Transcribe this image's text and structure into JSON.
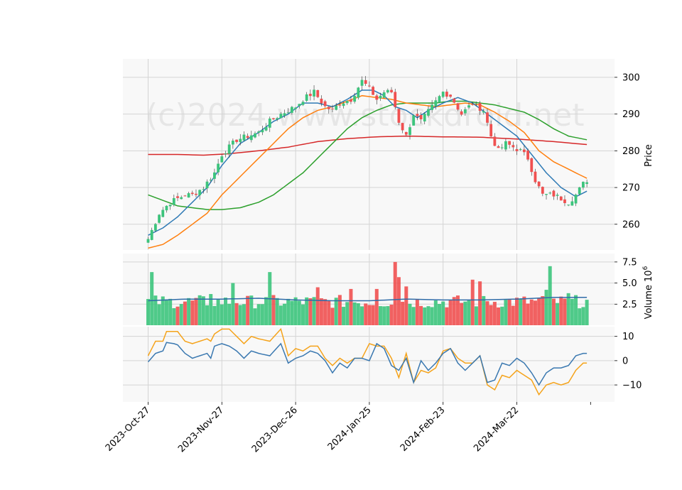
{
  "watermark": "(c)2024 www.stockdroid.net",
  "colors": {
    "panel_bg": "#f8f8f8",
    "grid": "#d4d4d4",
    "up": "#3cc47c",
    "down": "#f05050",
    "ma_short": "#2f7ab5",
    "ma_mid": "#ff7f0e",
    "ma_long": "#2ca02c",
    "ma_200": "#d62728",
    "vol_ma": "#2f6ca8",
    "osc_fast": "#3a78b0",
    "osc_slow": "#f5a31a"
  },
  "chart_data": [
    {
      "type": "candlestick",
      "panel": "price",
      "ylabel": "Price",
      "ylim": [
        253,
        305
      ],
      "yticks": [
        260,
        270,
        280,
        290,
        300
      ],
      "x_tick_labels": [
        "2023-Oct-27",
        "2023-Nov-27",
        "2023-Dec-26",
        "2024-Jan-25",
        "2024-Feb-23",
        "2024-Mar-22"
      ],
      "x_tick_index": [
        0,
        20,
        40,
        60,
        80,
        100
      ],
      "n_bars": 120,
      "close_anchors": [
        [
          0,
          256
        ],
        [
          3,
          263
        ],
        [
          6,
          266
        ],
        [
          10,
          268
        ],
        [
          12,
          268
        ],
        [
          15,
          270
        ],
        [
          18,
          274
        ],
        [
          20,
          279
        ],
        [
          24,
          283
        ],
        [
          27,
          284
        ],
        [
          30,
          285
        ],
        [
          33,
          288
        ],
        [
          36,
          290
        ],
        [
          38,
          291
        ],
        [
          40,
          292
        ],
        [
          42,
          294
        ],
        [
          45,
          296
        ],
        [
          48,
          292
        ],
        [
          50,
          291
        ],
        [
          52,
          293
        ],
        [
          55,
          294
        ],
        [
          58,
          299
        ],
        [
          60,
          297
        ],
        [
          62,
          294
        ],
        [
          64,
          296
        ],
        [
          66,
          296
        ],
        [
          68,
          288
        ],
        [
          70,
          284
        ],
        [
          72,
          290
        ],
        [
          74,
          288
        ],
        [
          77,
          292
        ],
        [
          80,
          296
        ],
        [
          82,
          295
        ],
        [
          85,
          290
        ],
        [
          88,
          293
        ],
        [
          91,
          291
        ],
        [
          93,
          284
        ],
        [
          95,
          280
        ],
        [
          97,
          282
        ],
        [
          99,
          281
        ],
        [
          101,
          280
        ],
        [
          103,
          278
        ],
        [
          105,
          272
        ],
        [
          107,
          268
        ],
        [
          110,
          268
        ],
        [
          112,
          267
        ],
        [
          114,
          266
        ],
        [
          116,
          268
        ],
        [
          118,
          271
        ],
        [
          119,
          272
        ]
      ],
      "ma_short_anchors": [
        [
          0,
          257
        ],
        [
          4,
          259
        ],
        [
          8,
          262
        ],
        [
          12,
          266
        ],
        [
          16,
          270
        ],
        [
          20,
          276
        ],
        [
          25,
          282
        ],
        [
          30,
          285
        ],
        [
          34,
          288
        ],
        [
          38,
          290
        ],
        [
          42,
          293
        ],
        [
          46,
          293
        ],
        [
          50,
          292
        ],
        [
          54,
          294
        ],
        [
          58,
          296.5
        ],
        [
          61,
          296.5
        ],
        [
          64,
          295
        ],
        [
          67,
          292
        ],
        [
          70,
          291
        ],
        [
          73,
          289
        ],
        [
          76,
          291
        ],
        [
          80,
          293
        ],
        [
          84,
          294.5
        ],
        [
          88,
          293
        ],
        [
          92,
          290
        ],
        [
          96,
          287
        ],
        [
          100,
          284
        ],
        [
          104,
          279
        ],
        [
          108,
          274
        ],
        [
          112,
          270
        ],
        [
          116,
          267.5
        ],
        [
          119,
          269
        ]
      ],
      "ma_mid_anchors": [
        [
          0,
          253.5
        ],
        [
          4,
          254.5
        ],
        [
          8,
          257
        ],
        [
          12,
          260
        ],
        [
          16,
          263
        ],
        [
          20,
          268
        ],
        [
          25,
          273
        ],
        [
          30,
          278
        ],
        [
          34,
          282
        ],
        [
          38,
          286
        ],
        [
          42,
          289
        ],
        [
          46,
          291
        ],
        [
          50,
          292
        ],
        [
          54,
          293.5
        ],
        [
          58,
          295
        ],
        [
          62,
          294.5
        ],
        [
          66,
          294
        ],
        [
          70,
          293
        ],
        [
          74,
          292.5
        ],
        [
          78,
          292
        ],
        [
          82,
          292.5
        ],
        [
          86,
          293
        ],
        [
          90,
          292.5
        ],
        [
          94,
          290.5
        ],
        [
          98,
          288
        ],
        [
          102,
          285
        ],
        [
          106,
          280
        ],
        [
          110,
          277
        ],
        [
          114,
          275
        ],
        [
          119,
          272.5
        ]
      ],
      "ma_long_anchors": [
        [
          0,
          268
        ],
        [
          4,
          266.5
        ],
        [
          8,
          265
        ],
        [
          12,
          264.5
        ],
        [
          16,
          264
        ],
        [
          20,
          264
        ],
        [
          25,
          264.5
        ],
        [
          30,
          266
        ],
        [
          34,
          268
        ],
        [
          38,
          271
        ],
        [
          42,
          274
        ],
        [
          46,
          278
        ],
        [
          50,
          282
        ],
        [
          54,
          286
        ],
        [
          58,
          289
        ],
        [
          62,
          291
        ],
        [
          66,
          292.5
        ],
        [
          70,
          293
        ],
        [
          74,
          293
        ],
        [
          78,
          293
        ],
        [
          82,
          293.5
        ],
        [
          86,
          293.5
        ],
        [
          90,
          293
        ],
        [
          94,
          292.5
        ],
        [
          98,
          291.5
        ],
        [
          102,
          290.5
        ],
        [
          106,
          288.5
        ],
        [
          110,
          286
        ],
        [
          114,
          284
        ],
        [
          119,
          283
        ]
      ],
      "ma_200_anchors": [
        [
          0,
          279
        ],
        [
          8,
          279
        ],
        [
          15,
          278.8
        ],
        [
          22,
          279.2
        ],
        [
          30,
          280
        ],
        [
          38,
          281
        ],
        [
          46,
          282.5
        ],
        [
          54,
          283.3
        ],
        [
          62,
          283.8
        ],
        [
          70,
          284
        ],
        [
          80,
          283.8
        ],
        [
          90,
          283.7
        ],
        [
          100,
          283.2
        ],
        [
          110,
          282.5
        ],
        [
          119,
          281.7
        ]
      ]
    },
    {
      "type": "bar",
      "panel": "volume",
      "ylabel": "Volume",
      "ylabel_exponent": "6",
      "ylim": [
        0,
        8.5
      ],
      "yticks": [
        2.5,
        5.0,
        7.5
      ],
      "ytick_labels": [
        "2.5",
        "5.0",
        "7.5"
      ],
      "vol_ma_anchors": [
        [
          0,
          2.9
        ],
        [
          10,
          3.1
        ],
        [
          20,
          3.1
        ],
        [
          30,
          3.2
        ],
        [
          40,
          3.0
        ],
        [
          50,
          2.9
        ],
        [
          60,
          2.9
        ],
        [
          70,
          3.1
        ],
        [
          80,
          3.0
        ],
        [
          90,
          3.0
        ],
        [
          100,
          3.1
        ],
        [
          110,
          3.3
        ],
        [
          119,
          3.3
        ]
      ],
      "spikes": [
        [
          1,
          6.3
        ],
        [
          17,
          3.7
        ],
        [
          23,
          5.0
        ],
        [
          33,
          6.3
        ],
        [
          46,
          4.5
        ],
        [
          55,
          4.3
        ],
        [
          62,
          4.3
        ],
        [
          67,
          7.5
        ],
        [
          68,
          5.7
        ],
        [
          70,
          4.6
        ],
        [
          88,
          5.4
        ],
        [
          90,
          5.2
        ],
        [
          108,
          4.2
        ],
        [
          109,
          7.0
        ],
        [
          114,
          3.8
        ]
      ]
    },
    {
      "type": "line",
      "panel": "oscillator",
      "ylim": [
        -17,
        14
      ],
      "yticks": [
        10,
        0,
        -10
      ],
      "ytick_labels": [
        "10",
        "0",
        "−10"
      ],
      "fast_anchors": [
        [
          0,
          -0.5
        ],
        [
          2,
          3
        ],
        [
          4,
          4
        ],
        [
          5,
          7.5
        ],
        [
          7,
          7
        ],
        [
          8,
          6.5
        ],
        [
          10,
          3
        ],
        [
          12,
          1
        ],
        [
          14,
          2
        ],
        [
          16,
          3
        ],
        [
          17,
          1
        ],
        [
          18,
          6
        ],
        [
          20,
          7
        ],
        [
          22,
          6
        ],
        [
          24,
          4
        ],
        [
          26,
          1
        ],
        [
          28,
          4
        ],
        [
          30,
          3
        ],
        [
          33,
          2
        ],
        [
          36,
          7
        ],
        [
          38,
          -1
        ],
        [
          40,
          1
        ],
        [
          42,
          2
        ],
        [
          44,
          4
        ],
        [
          46,
          3
        ],
        [
          48,
          0
        ],
        [
          50,
          -5
        ],
        [
          52,
          -1
        ],
        [
          54,
          -3
        ],
        [
          56,
          1
        ],
        [
          58,
          1
        ],
        [
          60,
          0
        ],
        [
          62,
          7
        ],
        [
          64,
          5
        ],
        [
          66,
          -2
        ],
        [
          68,
          -4
        ],
        [
          70,
          1
        ],
        [
          72,
          -9
        ],
        [
          74,
          0
        ],
        [
          76,
          -4
        ],
        [
          78,
          -1
        ],
        [
          80,
          3
        ],
        [
          82,
          5
        ],
        [
          84,
          -1
        ],
        [
          86,
          -4
        ],
        [
          88,
          -1
        ],
        [
          90,
          2
        ],
        [
          92,
          -9
        ],
        [
          94,
          -8
        ],
        [
          96,
          -1
        ],
        [
          98,
          -2
        ],
        [
          100,
          1
        ],
        [
          102,
          -1
        ],
        [
          104,
          -5
        ],
        [
          106,
          -10
        ],
        [
          108,
          -5
        ],
        [
          110,
          -3
        ],
        [
          112,
          -3
        ],
        [
          114,
          -2
        ],
        [
          116,
          2
        ],
        [
          118,
          3
        ]
      ],
      "slow_anchors": [
        [
          0,
          2
        ],
        [
          2,
          8
        ],
        [
          4,
          8
        ],
        [
          5,
          12
        ],
        [
          7,
          12
        ],
        [
          8,
          12
        ],
        [
          10,
          8
        ],
        [
          12,
          7
        ],
        [
          14,
          8
        ],
        [
          16,
          9
        ],
        [
          17,
          8
        ],
        [
          18,
          11
        ],
        [
          20,
          13
        ],
        [
          22,
          13
        ],
        [
          24,
          10
        ],
        [
          26,
          7
        ],
        [
          28,
          10
        ],
        [
          30,
          9
        ],
        [
          33,
          8
        ],
        [
          36,
          13
        ],
        [
          38,
          2
        ],
        [
          40,
          5
        ],
        [
          42,
          4
        ],
        [
          44,
          6
        ],
        [
          46,
          6
        ],
        [
          48,
          1
        ],
        [
          50,
          -2
        ],
        [
          52,
          1
        ],
        [
          54,
          -1
        ],
        [
          56,
          1
        ],
        [
          58,
          1
        ],
        [
          60,
          7
        ],
        [
          62,
          6
        ],
        [
          64,
          6
        ],
        [
          66,
          1
        ],
        [
          68,
          -7
        ],
        [
          70,
          3
        ],
        [
          72,
          -9
        ],
        [
          74,
          -4
        ],
        [
          76,
          -5
        ],
        [
          78,
          -3
        ],
        [
          80,
          4
        ],
        [
          82,
          5
        ],
        [
          84,
          1
        ],
        [
          86,
          -1
        ],
        [
          88,
          -1
        ],
        [
          90,
          2
        ],
        [
          92,
          -10
        ],
        [
          94,
          -12
        ],
        [
          96,
          -6
        ],
        [
          98,
          -7
        ],
        [
          100,
          -4
        ],
        [
          102,
          -6
        ],
        [
          104,
          -8
        ],
        [
          106,
          -14
        ],
        [
          108,
          -10
        ],
        [
          110,
          -9
        ],
        [
          112,
          -10
        ],
        [
          114,
          -9
        ],
        [
          116,
          -4
        ],
        [
          118,
          -1
        ]
      ]
    }
  ]
}
